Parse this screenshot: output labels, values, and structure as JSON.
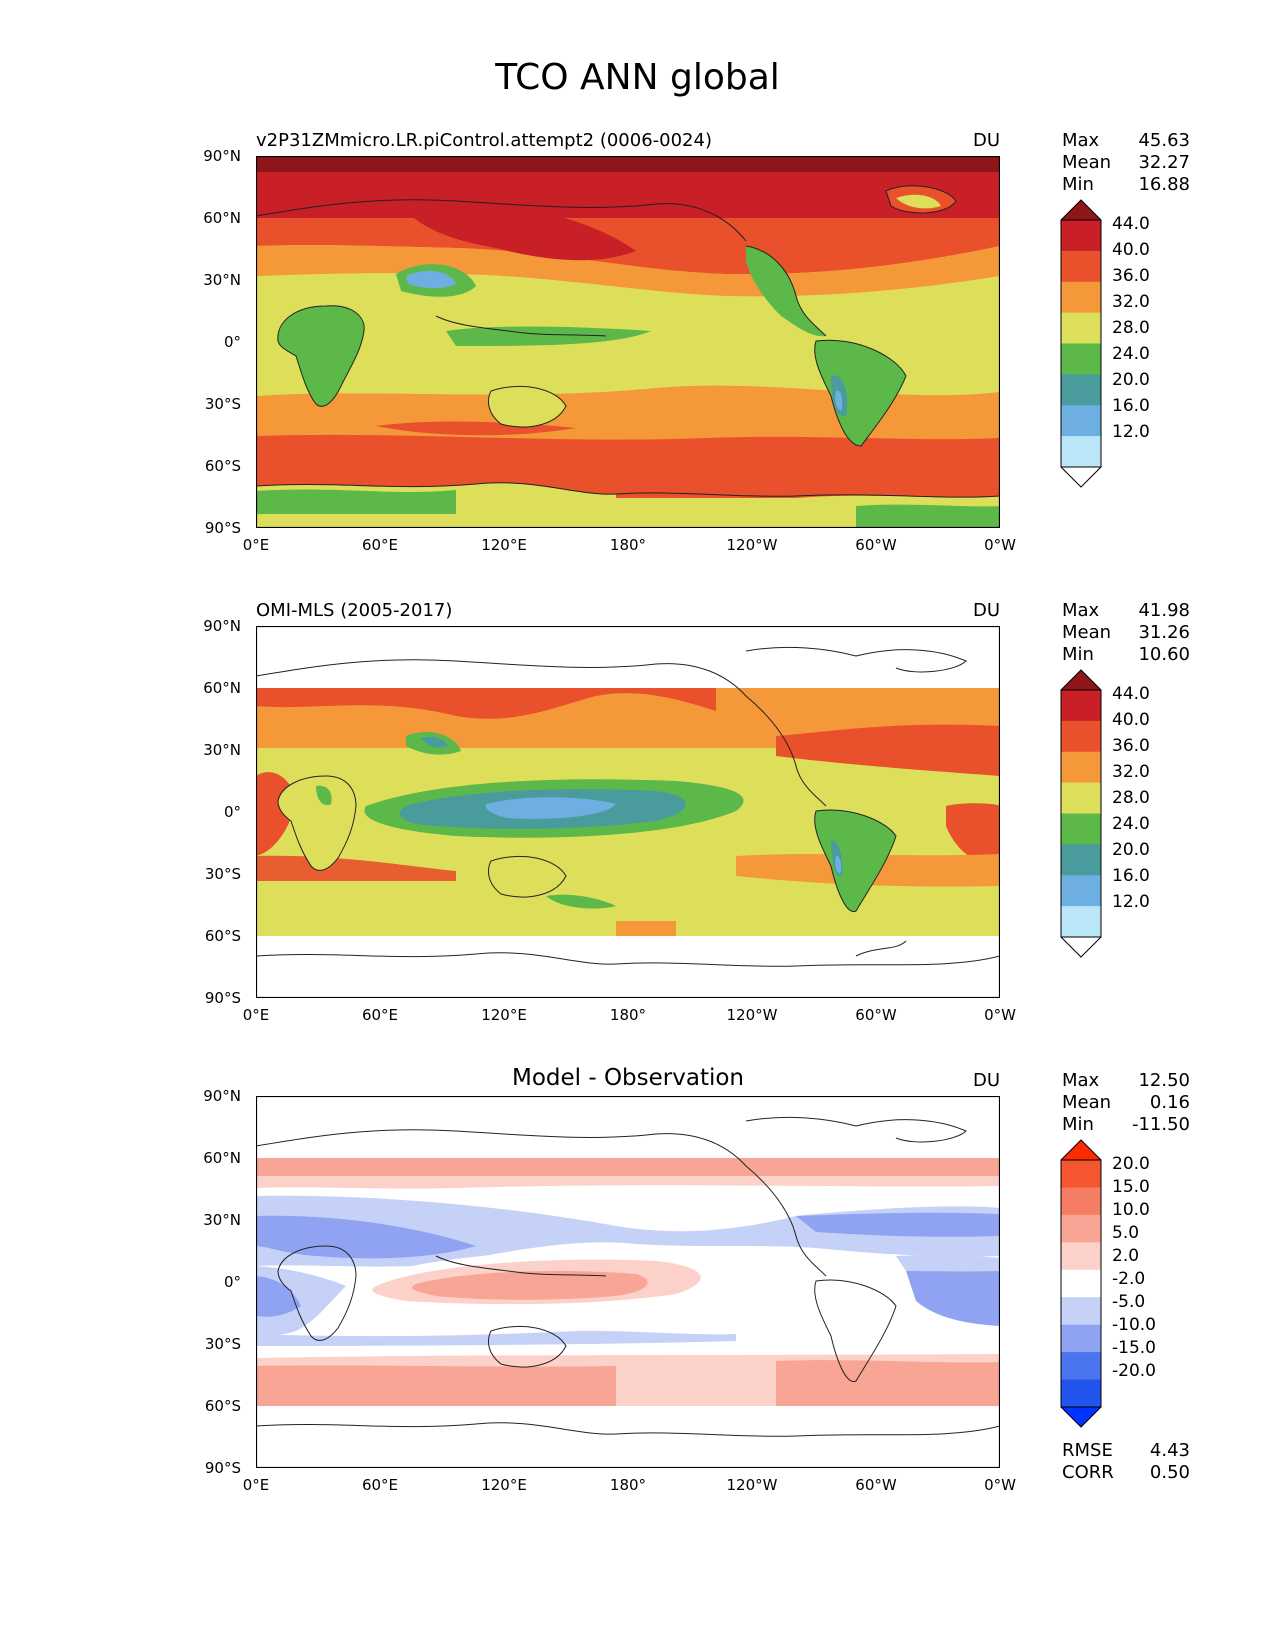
{
  "figure": {
    "title": "TCO ANN global"
  },
  "axes": {
    "lat_labels": [
      "90°N",
      "60°N",
      "30°N",
      "0°",
      "30°S",
      "60°S",
      "90°S"
    ],
    "lon_labels": [
      "0°E",
      "60°E",
      "120°E",
      "180°",
      "120°W",
      "60°W",
      "0°W"
    ]
  },
  "colormaps": {
    "absolute": [
      "#ffffff",
      "#bae6f8",
      "#6dafe0",
      "#4a9b9b",
      "#5db84a",
      "#dddf5b",
      "#f5983a",
      "#e8512b",
      "#c91f26",
      "#8e1519"
    ],
    "difference": [
      "#0033ff",
      "#2255ee",
      "#4a74f0",
      "#8fa3f2",
      "#c6d1f8",
      "#ffffff",
      "#fcd1c9",
      "#f8a596",
      "#f57d63",
      "#f55530",
      "#ff2b00"
    ]
  },
  "panels": [
    {
      "title": "v2P31ZMmicro.LR.piControl.attempt2 (0006-0024)",
      "units": "DU",
      "stats": {
        "max_label": "Max",
        "max": "45.63",
        "mean_label": "Mean",
        "mean": "32.27",
        "min_label": "Min",
        "min": "16.88"
      },
      "colorbar": {
        "labels": [
          "44.0",
          "40.0",
          "36.0",
          "32.0",
          "28.0",
          "24.0",
          "20.0",
          "16.0",
          "12.0"
        ]
      }
    },
    {
      "title": "OMI-MLS (2005-2017)",
      "units": "DU",
      "stats": {
        "max_label": "Max",
        "max": "41.98",
        "mean_label": "Mean",
        "mean": "31.26",
        "min_label": "Min",
        "min": "10.60"
      },
      "colorbar": {
        "labels": [
          "44.0",
          "40.0",
          "36.0",
          "32.0",
          "28.0",
          "24.0",
          "20.0",
          "16.0",
          "12.0"
        ]
      }
    },
    {
      "title": "Model - Observation",
      "units": "DU",
      "stats": {
        "max_label": "Max",
        "max": "12.50",
        "mean_label": "Mean",
        "mean": "0.16",
        "min_label": "Min",
        "min": "-11.50"
      },
      "colorbar": {
        "labels": [
          "20.0",
          "15.0",
          "10.0",
          "5.0",
          "2.0",
          "-2.0",
          "-5.0",
          "-10.0",
          "-15.0",
          "-20.0"
        ]
      },
      "rmse_label": "RMSE",
      "rmse": "4.43",
      "corr_label": "CORR",
      "corr": "0.50"
    }
  ]
}
